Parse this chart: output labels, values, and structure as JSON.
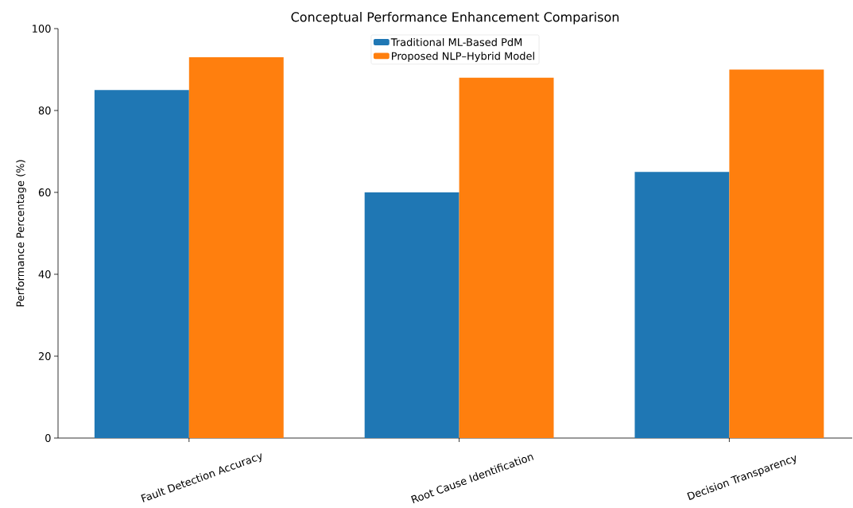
{
  "chart_data": {
    "type": "bar",
    "title": "Conceptual Performance Enhancement Comparison",
    "ylabel": "Performance Percentage (%)",
    "categories": [
      "Fault Detection Accuracy",
      "Root Cause Identification",
      "Decision Transparency"
    ],
    "series": [
      {
        "name": "Traditional ML-Based PdM",
        "color": "#1f77b4",
        "values": [
          85,
          60,
          65
        ]
      },
      {
        "name": "Proposed NLP–Hybrid Model",
        "color": "#ff7f0e",
        "values": [
          93,
          88,
          90
        ]
      }
    ],
    "ylim": [
      0,
      100
    ],
    "yticks": [
      0,
      20,
      40,
      60,
      80,
      100
    ],
    "legend": "top",
    "grid": false
  }
}
